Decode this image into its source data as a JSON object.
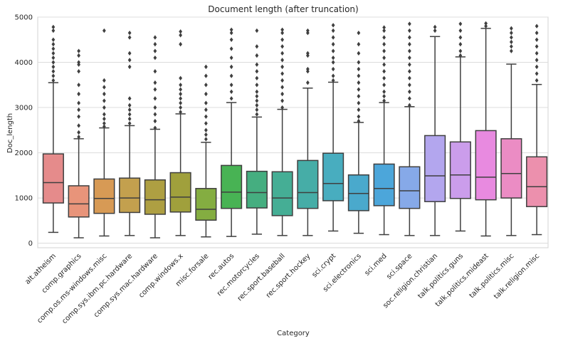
{
  "chart_data": {
    "type": "box",
    "title": "Document length (after truncation)",
    "xlabel": "Category",
    "ylabel": "Doc_length",
    "ylim": [
      -100,
      5000
    ],
    "yticks": [
      0,
      1000,
      2000,
      3000,
      4000,
      5000
    ],
    "grid": "horizontal",
    "categories": [
      "alt.atheism",
      "comp.graphics",
      "comp.os.ms-windows.misc",
      "comp.sys.ibm.pc.hardware",
      "comp.sys.mac.hardware",
      "comp.windows.x",
      "misc.forsale",
      "rec.autos",
      "rec.motorcycles",
      "rec.sport.baseball",
      "rec.sport.hockey",
      "sci.crypt",
      "sci.electronics",
      "sci.med",
      "sci.space",
      "soc.religion.christian",
      "talk.politics.guns",
      "talk.politics.mideast",
      "talk.politics.misc",
      "talk.religion.misc"
    ],
    "boxes": [
      {
        "whislo": 240,
        "q1": 890,
        "med": 1340,
        "q3": 1975,
        "whishi": 3550,
        "color": "#e58b8b",
        "fliers": [
          3600,
          3700,
          3800,
          3900,
          4000,
          4100,
          4200,
          4300,
          4400,
          4500,
          4700,
          4780
        ]
      },
      {
        "whislo": 120,
        "q1": 580,
        "med": 870,
        "q3": 1270,
        "whishi": 2310,
        "color": "#e8947a",
        "fliers": [
          2350,
          2450,
          2600,
          2800,
          2950,
          3100,
          3300,
          3500,
          3800,
          3950,
          4000,
          4150,
          4250
        ]
      },
      {
        "whislo": 160,
        "q1": 660,
        "med": 990,
        "q3": 1420,
        "whishi": 2550,
        "color": "#d79a55",
        "fliers": [
          2580,
          2650,
          2750,
          2850,
          3000,
          3150,
          3300,
          3450,
          3600,
          4700
        ]
      },
      {
        "whislo": 170,
        "q1": 680,
        "med": 1000,
        "q3": 1440,
        "whishi": 2600,
        "color": "#c3a04e",
        "fliers": [
          2650,
          2750,
          2850,
          2950,
          3050,
          3200,
          3900,
          4050,
          4200,
          4550,
          4650
        ]
      },
      {
        "whislo": 120,
        "q1": 640,
        "med": 960,
        "q3": 1400,
        "whishi": 2520,
        "color": "#ae9f42",
        "fliers": [
          2550,
          2700,
          2850,
          3000,
          3200,
          3400,
          3550,
          3800,
          4100,
          4250,
          4400,
          4550
        ]
      },
      {
        "whislo": 170,
        "q1": 690,
        "med": 1020,
        "q3": 1560,
        "whishi": 2860,
        "color": "#a0a03c",
        "fliers": [
          2900,
          3000,
          3100,
          3200,
          3300,
          3400,
          3500,
          3650,
          4400,
          4600,
          4680
        ]
      },
      {
        "whislo": 140,
        "q1": 510,
        "med": 750,
        "q3": 1210,
        "whishi": 2230,
        "color": "#84ad41",
        "fliers": [
          2300,
          2400,
          2500,
          2650,
          2800,
          2950,
          3100,
          3300,
          3500,
          3700,
          3900
        ]
      },
      {
        "whislo": 150,
        "q1": 770,
        "med": 1130,
        "q3": 1720,
        "whishi": 3110,
        "color": "#48b354",
        "fliers": [
          3200,
          3350,
          3500,
          3700,
          3900,
          4100,
          4300,
          4500,
          4650,
          4720
        ]
      },
      {
        "whislo": 200,
        "q1": 780,
        "med": 1120,
        "q3": 1590,
        "whishi": 2790,
        "color": "#45ae80",
        "fliers": [
          2850,
          2950,
          3050,
          3150,
          3250,
          3350,
          3500,
          3650,
          3800,
          3950,
          4150,
          4350,
          4700
        ]
      },
      {
        "whislo": 170,
        "q1": 610,
        "med": 1000,
        "q3": 1580,
        "whishi": 2960,
        "color": "#45ae95",
        "fliers": [
          3000,
          3150,
          3300,
          3450,
          3600,
          3750,
          3900,
          4050,
          4200,
          4350,
          4500,
          4650,
          4720
        ]
      },
      {
        "whislo": 170,
        "q1": 770,
        "med": 1120,
        "q3": 1830,
        "whishi": 3430,
        "color": "#46ada7",
        "fliers": [
          3550,
          3800,
          3850,
          4150,
          4200,
          4650,
          4700
        ]
      },
      {
        "whislo": 270,
        "q1": 940,
        "med": 1320,
        "q3": 1990,
        "whishi": 3560,
        "color": "#48adbf",
        "fliers": [
          3600,
          3700,
          3850,
          4000,
          4100,
          4250,
          4400,
          4550,
          4700,
          4820
        ]
      },
      {
        "whislo": 220,
        "q1": 720,
        "med": 1100,
        "q3": 1510,
        "whishi": 2670,
        "color": "#4aa9cc",
        "fliers": [
          2700,
          2800,
          2950,
          3100,
          3250,
          3400,
          3550,
          3700,
          3850,
          4000,
          4200,
          4400,
          4650
        ]
      },
      {
        "whislo": 190,
        "q1": 830,
        "med": 1210,
        "q3": 1750,
        "whishi": 3110,
        "color": "#4ca6da",
        "fliers": [
          3150,
          3250,
          3350,
          3500,
          3650,
          3800,
          3950,
          4100,
          4250,
          4400,
          4550,
          4700,
          4770
        ]
      },
      {
        "whislo": 170,
        "q1": 770,
        "med": 1160,
        "q3": 1690,
        "whishi": 3020,
        "color": "#86a9e8",
        "fliers": [
          3050,
          3200,
          3350,
          3500,
          3650,
          3800,
          3950,
          4100,
          4250,
          4400,
          4550,
          4700,
          4850
        ]
      },
      {
        "whislo": 170,
        "q1": 920,
        "med": 1490,
        "q3": 2380,
        "whishi": 4570,
        "color": "#b3a6ee",
        "fliers": [
          4700,
          4780
        ]
      },
      {
        "whislo": 270,
        "q1": 990,
        "med": 1510,
        "q3": 2240,
        "whishi": 4120,
        "color": "#cb9deb",
        "fliers": [
          4150,
          4250,
          4400,
          4550,
          4700,
          4850
        ]
      },
      {
        "whislo": 160,
        "q1": 960,
        "med": 1460,
        "q3": 2490,
        "whishi": 4750,
        "color": "#e88ae0",
        "fliers": [
          4800,
          4860
        ]
      },
      {
        "whislo": 170,
        "q1": 1000,
        "med": 1540,
        "q3": 2310,
        "whishi": 3960,
        "color": "#eb8cc4",
        "fliers": [
          4250,
          4350,
          4450,
          4550,
          4650,
          4750
        ]
      },
      {
        "whislo": 190,
        "q1": 810,
        "med": 1250,
        "q3": 1910,
        "whishi": 3510,
        "color": "#ec90ad",
        "fliers": [
          3600,
          3750,
          3900,
          4050,
          4200,
          4350,
          4500,
          4650,
          4800
        ]
      }
    ]
  }
}
